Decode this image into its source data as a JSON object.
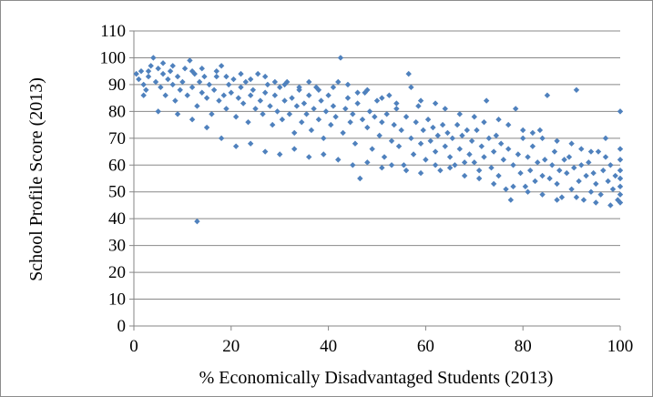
{
  "chart_data": {
    "type": "scatter",
    "xlabel": "% Economically Disadvantaged Students (2013)",
    "ylabel": "School Profile Score (2013)",
    "xlim": [
      0,
      100
    ],
    "ylim": [
      0,
      110
    ],
    "x_ticks": [
      0,
      20,
      40,
      60,
      80,
      100
    ],
    "y_ticks": [
      0,
      10,
      20,
      30,
      40,
      50,
      60,
      70,
      80,
      90,
      100,
      110
    ],
    "grid": "horizontal",
    "legend": "none",
    "marker": "diamond",
    "marker_color": "#4f81bd",
    "grid_color": "#888888",
    "points": [
      [
        0.5,
        94
      ],
      [
        1,
        92
      ],
      [
        1.5,
        95
      ],
      [
        2,
        90
      ],
      [
        2.5,
        88
      ],
      [
        3,
        93
      ],
      [
        3.5,
        97
      ],
      [
        4,
        100
      ],
      [
        4.5,
        91
      ],
      [
        5,
        96
      ],
      [
        5.5,
        89
      ],
      [
        6,
        94
      ],
      [
        6.5,
        86
      ],
      [
        7,
        92
      ],
      [
        7.5,
        95
      ],
      [
        8,
        90
      ],
      [
        8.5,
        84
      ],
      [
        9,
        93
      ],
      [
        9.5,
        88
      ],
      [
        10,
        91
      ],
      [
        10.5,
        96
      ],
      [
        11,
        86
      ],
      [
        11.5,
        99
      ],
      [
        12,
        89
      ],
      [
        12.5,
        94
      ],
      [
        13,
        82
      ],
      [
        13.5,
        91
      ],
      [
        14,
        87
      ],
      [
        14.5,
        93
      ],
      [
        15,
        85
      ],
      [
        15.5,
        90
      ],
      [
        16,
        79
      ],
      [
        16.5,
        88
      ],
      [
        17,
        93
      ],
      [
        17.5,
        84
      ],
      [
        18,
        97
      ],
      [
        18.5,
        86
      ],
      [
        19,
        81
      ],
      [
        19.5,
        90
      ],
      [
        20,
        87
      ],
      [
        20.5,
        92
      ],
      [
        21,
        78
      ],
      [
        21.5,
        85
      ],
      [
        22,
        89
      ],
      [
        22.5,
        83
      ],
      [
        23,
        91
      ],
      [
        23.5,
        76
      ],
      [
        24,
        86
      ],
      [
        24.5,
        88
      ],
      [
        25,
        81
      ],
      [
        25.5,
        94
      ],
      [
        26,
        84
      ],
      [
        26.5,
        79
      ],
      [
        27,
        87
      ],
      [
        27.5,
        90
      ],
      [
        28,
        82
      ],
      [
        28.5,
        75
      ],
      [
        29,
        86
      ],
      [
        29.5,
        80
      ],
      [
        30,
        89
      ],
      [
        30.5,
        77
      ],
      [
        31,
        84
      ],
      [
        31.5,
        91
      ],
      [
        32,
        79
      ],
      [
        32.5,
        85
      ],
      [
        33,
        72
      ],
      [
        33.5,
        82
      ],
      [
        34,
        88
      ],
      [
        34.5,
        76
      ],
      [
        35,
        83
      ],
      [
        35.5,
        79
      ],
      [
        36,
        86
      ],
      [
        36.5,
        73
      ],
      [
        37,
        81
      ],
      [
        37.5,
        89
      ],
      [
        38,
        77
      ],
      [
        38.5,
        84
      ],
      [
        39,
        70
      ],
      [
        39.5,
        80
      ],
      [
        40,
        86
      ],
      [
        40.5,
        75
      ],
      [
        41,
        82
      ],
      [
        41.5,
        78
      ],
      [
        42,
        91
      ],
      [
        42.5,
        100
      ],
      [
        43,
        72
      ],
      [
        43.5,
        81
      ],
      [
        44,
        85
      ],
      [
        44.5,
        76
      ],
      [
        45,
        79
      ],
      [
        45.5,
        68
      ],
      [
        46,
        83
      ],
      [
        46.5,
        55
      ],
      [
        47,
        77
      ],
      [
        47.5,
        87
      ],
      [
        48,
        74
      ],
      [
        48.5,
        80
      ],
      [
        49,
        66
      ],
      [
        49.5,
        78
      ],
      [
        50,
        84
      ],
      [
        50.5,
        71
      ],
      [
        51,
        76
      ],
      [
        51.5,
        63
      ],
      [
        52,
        79
      ],
      [
        52.5,
        86
      ],
      [
        53,
        69
      ],
      [
        53.5,
        75
      ],
      [
        54,
        81
      ],
      [
        54.5,
        67
      ],
      [
        55,
        73
      ],
      [
        55.5,
        60
      ],
      [
        56,
        78
      ],
      [
        56.5,
        94
      ],
      [
        57,
        70
      ],
      [
        57.5,
        64
      ],
      [
        58,
        76
      ],
      [
        58.5,
        82
      ],
      [
        59,
        68
      ],
      [
        59.5,
        73
      ],
      [
        60,
        62
      ],
      [
        60.5,
        77
      ],
      [
        61,
        69
      ],
      [
        61.5,
        74
      ],
      [
        62,
        65
      ],
      [
        62.5,
        71
      ],
      [
        63,
        58
      ],
      [
        63.5,
        75
      ],
      [
        64,
        67
      ],
      [
        64.5,
        72
      ],
      [
        65,
        63
      ],
      [
        65.5,
        70
      ],
      [
        66,
        60
      ],
      [
        66.5,
        75
      ],
      [
        67,
        66
      ],
      [
        67.5,
        71
      ],
      [
        68,
        56
      ],
      [
        68.5,
        73
      ],
      [
        69,
        64
      ],
      [
        69.5,
        69
      ],
      [
        70,
        61
      ],
      [
        70.5,
        73
      ],
      [
        71,
        58
      ],
      [
        71.5,
        67
      ],
      [
        72,
        63
      ],
      [
        72.5,
        84
      ],
      [
        73,
        70
      ],
      [
        73.5,
        59
      ],
      [
        74,
        65
      ],
      [
        74.5,
        71
      ],
      [
        75,
        56
      ],
      [
        75.5,
        68
      ],
      [
        76,
        62
      ],
      [
        76.5,
        51
      ],
      [
        77,
        66
      ],
      [
        77.5,
        47
      ],
      [
        78,
        60
      ],
      [
        78.5,
        81
      ],
      [
        79,
        64
      ],
      [
        79.5,
        57
      ],
      [
        80,
        70
      ],
      [
        80.5,
        52
      ],
      [
        81,
        63
      ],
      [
        81.5,
        58
      ],
      [
        82,
        67
      ],
      [
        82.5,
        54
      ],
      [
        83,
        61
      ],
      [
        83.5,
        73
      ],
      [
        84,
        56
      ],
      [
        84.5,
        62
      ],
      [
        85,
        86
      ],
      [
        85.5,
        55
      ],
      [
        86,
        60
      ],
      [
        86.5,
        65
      ],
      [
        87,
        53
      ],
      [
        87.5,
        58
      ],
      [
        88,
        48
      ],
      [
        88.5,
        62
      ],
      [
        89,
        57
      ],
      [
        89.5,
        63
      ],
      [
        90,
        51
      ],
      [
        90.5,
        59
      ],
      [
        91,
        88
      ],
      [
        91.5,
        54
      ],
      [
        92,
        60
      ],
      [
        92.5,
        47
      ],
      [
        93,
        56
      ],
      [
        93.5,
        61
      ],
      [
        94,
        50
      ],
      [
        94.5,
        57
      ],
      [
        95,
        53
      ],
      [
        95.5,
        65
      ],
      [
        96,
        49
      ],
      [
        96.5,
        58
      ],
      [
        97,
        70
      ],
      [
        97.5,
        54
      ],
      [
        98,
        60
      ],
      [
        98.5,
        51
      ],
      [
        99,
        56
      ],
      [
        99.5,
        47
      ],
      [
        100,
        80
      ],
      [
        100,
        66
      ],
      [
        100,
        62
      ],
      [
        100,
        58
      ],
      [
        100,
        55
      ],
      [
        100,
        52
      ],
      [
        100,
        49
      ],
      [
        100,
        46
      ],
      [
        13,
        39
      ],
      [
        3,
        95
      ],
      [
        6,
        98
      ],
      [
        8,
        97
      ],
      [
        12,
        95
      ],
      [
        14,
        96
      ],
      [
        17,
        95
      ],
      [
        19,
        93
      ],
      [
        22,
        94
      ],
      [
        24,
        92
      ],
      [
        27,
        93
      ],
      [
        29,
        91
      ],
      [
        31,
        90
      ],
      [
        34,
        89
      ],
      [
        36,
        91
      ],
      [
        38,
        88
      ],
      [
        41,
        89
      ],
      [
        44,
        90
      ],
      [
        46,
        87
      ],
      [
        48,
        88
      ],
      [
        51,
        85
      ],
      [
        54,
        83
      ],
      [
        57,
        89
      ],
      [
        59,
        84
      ],
      [
        62,
        83
      ],
      [
        64,
        81
      ],
      [
        67,
        79
      ],
      [
        70,
        78
      ],
      [
        72,
        76
      ],
      [
        75,
        77
      ],
      [
        77,
        75
      ],
      [
        80,
        73
      ],
      [
        82,
        72
      ],
      [
        84,
        70
      ],
      [
        87,
        69
      ],
      [
        90,
        68
      ],
      [
        92,
        66
      ],
      [
        94,
        65
      ],
      [
        97,
        63
      ],
      [
        2,
        86
      ],
      [
        5,
        80
      ],
      [
        9,
        79
      ],
      [
        12,
        77
      ],
      [
        15,
        74
      ],
      [
        18,
        70
      ],
      [
        21,
        67
      ],
      [
        24,
        68
      ],
      [
        27,
        65
      ],
      [
        30,
        64
      ],
      [
        33,
        66
      ],
      [
        36,
        63
      ],
      [
        39,
        64
      ],
      [
        42,
        62
      ],
      [
        45,
        60
      ],
      [
        48,
        61
      ],
      [
        51,
        59
      ],
      [
        53,
        60
      ],
      [
        56,
        58
      ],
      [
        59,
        57
      ],
      [
        62,
        60
      ],
      [
        65,
        59
      ],
      [
        68,
        61
      ],
      [
        71,
        55
      ],
      [
        74,
        53
      ],
      [
        78,
        52
      ],
      [
        81,
        50
      ],
      [
        84,
        49
      ],
      [
        87,
        47
      ],
      [
        91,
        48
      ],
      [
        95,
        46
      ],
      [
        98,
        45
      ]
    ]
  }
}
